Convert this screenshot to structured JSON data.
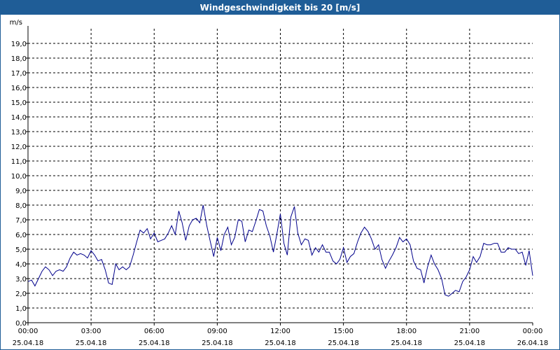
{
  "window": {
    "title": "Windgeschwindigkeit bis 20 [m/s]"
  },
  "colors": {
    "titlebar": "#1f5d97",
    "line": "#00008b",
    "grid": "#000000",
    "axis": "#000000"
  },
  "chart_data": {
    "type": "line",
    "title": "Windgeschwindigkeit bis 20 [m/s]",
    "ylabel": "m/s",
    "xlabel": "",
    "ylim": [
      0,
      20
    ],
    "xlim": [
      0,
      24
    ],
    "grid": true,
    "y_ticks": [
      {
        "value": 0,
        "label": "0,0"
      },
      {
        "value": 1,
        "label": "1,0"
      },
      {
        "value": 2,
        "label": "2,0"
      },
      {
        "value": 3,
        "label": "3,0"
      },
      {
        "value": 4,
        "label": "4,0"
      },
      {
        "value": 5,
        "label": "5,0"
      },
      {
        "value": 6,
        "label": "6,0"
      },
      {
        "value": 7,
        "label": "7,0"
      },
      {
        "value": 8,
        "label": "8,0"
      },
      {
        "value": 9,
        "label": "9,0"
      },
      {
        "value": 10,
        "label": "10,0"
      },
      {
        "value": 11,
        "label": "11,0"
      },
      {
        "value": 12,
        "label": "12,0"
      },
      {
        "value": 13,
        "label": "13,0"
      },
      {
        "value": 14,
        "label": "14,0"
      },
      {
        "value": 15,
        "label": "15,0"
      },
      {
        "value": 16,
        "label": "16,0"
      },
      {
        "value": 17,
        "label": "17,0"
      },
      {
        "value": 18,
        "label": "18,0"
      },
      {
        "value": 19,
        "label": "19,0"
      }
    ],
    "x_ticks": [
      {
        "value": 0,
        "time": "00:00",
        "date": "25.04.18"
      },
      {
        "value": 3,
        "time": "03:00",
        "date": "25.04.18"
      },
      {
        "value": 6,
        "time": "06:00",
        "date": "25.04.18"
      },
      {
        "value": 9,
        "time": "09:00",
        "date": "25.04.18"
      },
      {
        "value": 12,
        "time": "12:00",
        "date": "25.04.18"
      },
      {
        "value": 15,
        "time": "15:00",
        "date": "25.04.18"
      },
      {
        "value": 18,
        "time": "18:00",
        "date": "25.04.18"
      },
      {
        "value": 21,
        "time": "21:00",
        "date": "25.04.18"
      },
      {
        "value": 24,
        "time": "00:00",
        "date": "26.04.18"
      }
    ],
    "series": [
      {
        "name": "Windgeschwindigkeit",
        "x": [
          0,
          0.17,
          0.33,
          0.5,
          0.67,
          0.83,
          1,
          1.17,
          1.33,
          1.5,
          1.67,
          1.83,
          2,
          2.17,
          2.33,
          2.5,
          2.67,
          2.83,
          3,
          3.17,
          3.33,
          3.5,
          3.67,
          3.83,
          4,
          4.17,
          4.33,
          4.5,
          4.67,
          4.83,
          5,
          5.17,
          5.33,
          5.5,
          5.67,
          5.83,
          6,
          6.17,
          6.33,
          6.5,
          6.67,
          6.83,
          7,
          7.17,
          7.33,
          7.5,
          7.67,
          7.83,
          8,
          8.17,
          8.33,
          8.5,
          8.67,
          8.83,
          9,
          9.17,
          9.33,
          9.5,
          9.67,
          9.83,
          10,
          10.17,
          10.33,
          10.5,
          10.67,
          10.83,
          11,
          11.17,
          11.33,
          11.5,
          11.67,
          11.83,
          12,
          12.17,
          12.33,
          12.5,
          12.67,
          12.83,
          13,
          13.17,
          13.33,
          13.5,
          13.67,
          13.83,
          14,
          14.17,
          14.33,
          14.5,
          14.67,
          14.83,
          15,
          15.17,
          15.33,
          15.5,
          15.67,
          15.83,
          16,
          16.17,
          16.33,
          16.5,
          16.67,
          16.83,
          17,
          17.17,
          17.33,
          17.5,
          17.67,
          17.83,
          18,
          18.17,
          18.33,
          18.5,
          18.67,
          18.83,
          19,
          19.17,
          19.33,
          19.5,
          19.67,
          19.83,
          20,
          20.17,
          20.33,
          20.5,
          20.67,
          20.83,
          21,
          21.17,
          21.33,
          21.5,
          21.67,
          21.83,
          22,
          22.17,
          22.33,
          22.5,
          22.67,
          22.83,
          23,
          23.17,
          23.33,
          23.5,
          23.67,
          23.83,
          24
        ],
        "values": [
          2.8,
          2.9,
          2.5,
          3.0,
          3.5,
          3.8,
          3.6,
          3.2,
          3.5,
          3.6,
          3.5,
          3.8,
          4.4,
          4.8,
          4.6,
          4.7,
          4.6,
          4.4,
          4.9,
          4.6,
          4.2,
          4.3,
          3.6,
          2.7,
          2.6,
          4.0,
          3.6,
          3.8,
          3.6,
          3.8,
          4.6,
          5.5,
          6.3,
          6.1,
          6.4,
          5.7,
          6.1,
          5.5,
          5.6,
          5.7,
          6.1,
          6.6,
          6.0,
          7.6,
          6.8,
          5.6,
          6.6,
          7.0,
          7.1,
          6.8,
          8.0,
          6.6,
          5.5,
          4.5,
          5.8,
          4.9,
          6.0,
          6.5,
          5.3,
          5.8,
          7.0,
          6.9,
          5.5,
          6.3,
          6.2,
          6.9,
          7.7,
          7.6,
          6.6,
          5.9,
          4.8,
          6.0,
          7.4,
          5.4,
          4.6,
          7.2,
          7.9,
          6.1,
          5.3,
          5.7,
          5.6,
          4.6,
          5.1,
          4.8,
          5.3,
          4.8,
          4.8,
          4.2,
          4.0,
          4.3,
          5.1,
          4.1,
          4.5,
          4.7,
          5.5,
          6.1,
          6.5,
          6.2,
          5.7,
          5.0,
          5.3,
          4.3,
          3.7,
          4.2,
          4.6,
          5.1,
          5.8,
          5.5,
          5.7,
          5.3,
          4.2,
          3.7,
          3.6,
          2.7,
          3.8,
          4.6,
          4.0,
          3.6,
          3.0,
          1.9,
          1.8,
          2.0,
          2.2,
          2.1,
          2.8,
          3.1,
          3.6,
          4.5,
          4.1,
          4.5,
          5.4,
          5.3,
          5.3,
          5.4,
          5.4,
          4.8,
          4.8,
          5.1,
          5.0,
          5.0,
          4.7,
          4.8,
          3.9,
          4.9,
          3.2
        ]
      }
    ]
  }
}
